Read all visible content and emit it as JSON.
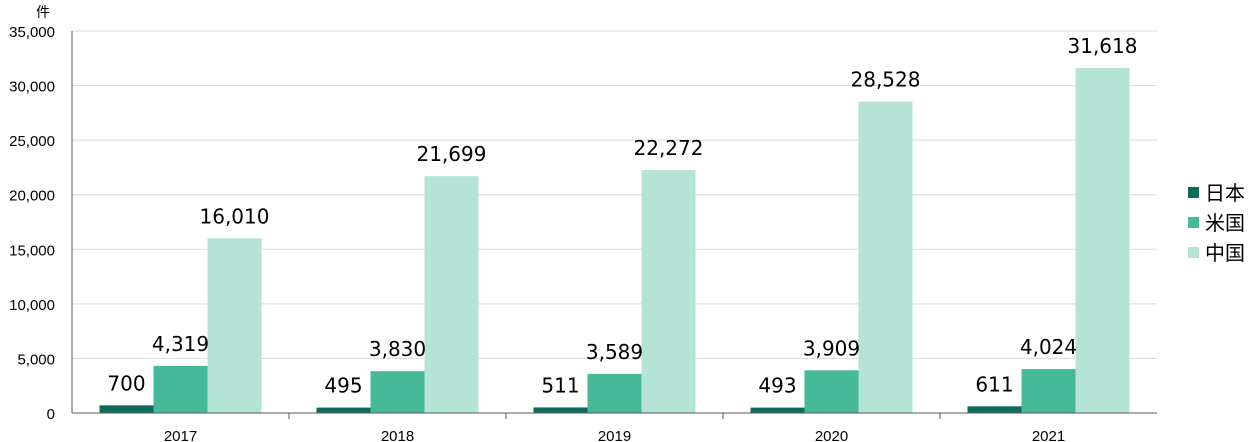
{
  "chart_data": {
    "type": "bar",
    "unit_label": "件",
    "categories": [
      "2017",
      "2018",
      "2019",
      "2020",
      "2021"
    ],
    "series": [
      {
        "name": "日本",
        "color": "#0c6b5a",
        "values": [
          700,
          495,
          511,
          493,
          611
        ]
      },
      {
        "name": "米国",
        "color": "#45b998",
        "values": [
          4319,
          3830,
          3589,
          3909,
          4024
        ]
      },
      {
        "name": "中国",
        "color": "#b5e4d7",
        "values": [
          16010,
          21699,
          22272,
          28528,
          31618
        ]
      }
    ],
    "data_labels": [
      [
        "700",
        "495",
        "511",
        "493",
        "611"
      ],
      [
        "4,319",
        "3,830",
        "3,589",
        "3,909",
        "4,024"
      ],
      [
        "16,010",
        "21,699",
        "22,272",
        "28,528",
        "31,618"
      ]
    ],
    "ylim": [
      0,
      35000
    ],
    "yticks": [
      0,
      5000,
      10000,
      15000,
      20000,
      25000,
      30000,
      35000
    ],
    "ytick_labels": [
      "0",
      "5,000",
      "10,000",
      "15,000",
      "20,000",
      "25,000",
      "30,000",
      "35,000"
    ],
    "grid": true,
    "legend_position": "right"
  }
}
